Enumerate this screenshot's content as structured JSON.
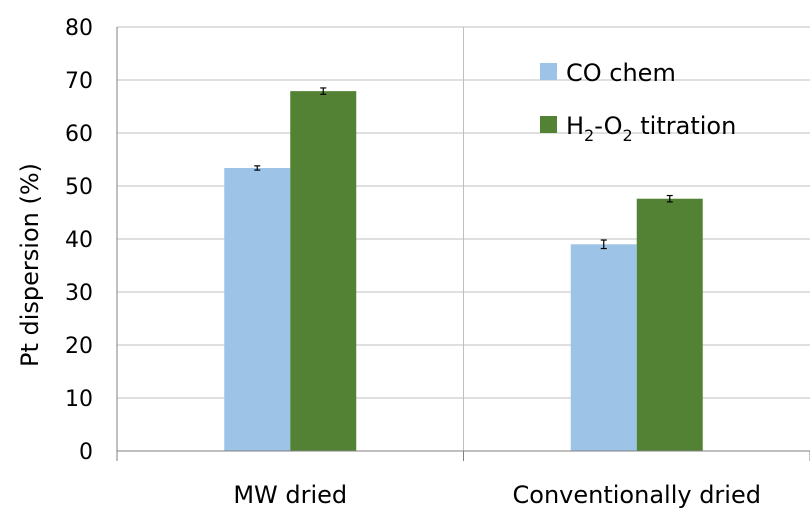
{
  "chart_data": {
    "type": "bar",
    "title": "",
    "xlabel": "",
    "ylabel": "Pt dispersion (%)",
    "ylim": [
      0,
      80
    ],
    "yticks": [
      0,
      10,
      20,
      30,
      40,
      50,
      60,
      70,
      80
    ],
    "categories": [
      "MW dried",
      "Conventionally dried"
    ],
    "grid": "horizontal",
    "legend": {
      "placement": "top-right"
    },
    "series": [
      {
        "name": "CO chem",
        "label_main": "CO chem",
        "color": "#9dc3e6",
        "values": [
          53.4,
          39.0
        ],
        "errors": [
          0.4,
          0.8
        ]
      },
      {
        "name": "H2-O2 titration",
        "label_main": "H",
        "label_sub1": "2",
        "label_mid": "-O",
        "label_sub2": "2",
        "label_end": " titration",
        "color": "#548235",
        "values": [
          67.9,
          47.6
        ],
        "errors": [
          0.6,
          0.6
        ]
      }
    ]
  }
}
